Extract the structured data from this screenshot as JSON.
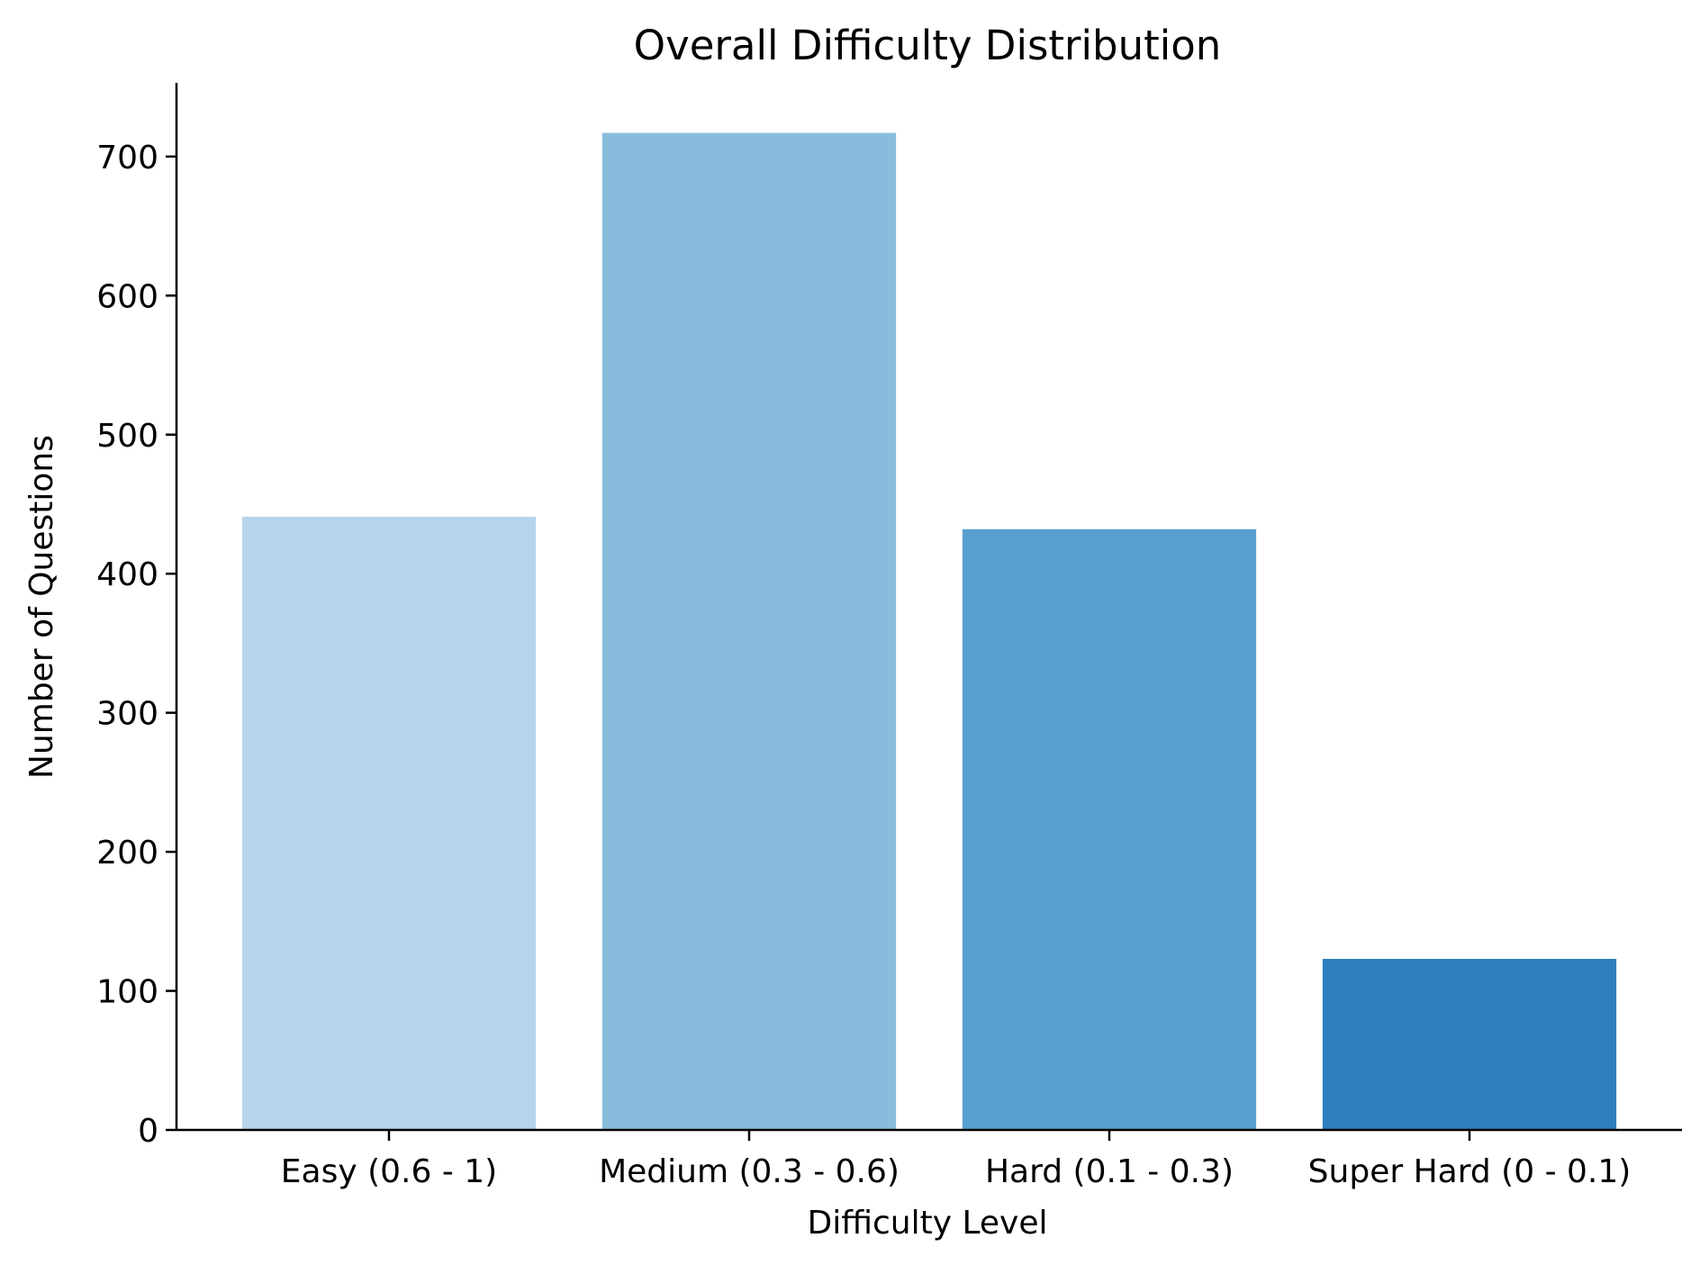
{
  "chart_data": {
    "type": "bar",
    "title": "Overall Difficulty Distribution",
    "xlabel": "Difficulty Level",
    "ylabel": "Number of Questions",
    "categories": [
      "Easy (0.6 - 1)",
      "Medium (0.3 - 0.6)",
      "Hard (0.1 - 0.3)",
      "Super Hard (0 - 0.1)"
    ],
    "values": [
      441,
      717,
      432,
      123
    ],
    "colors": [
      "#b8d4ea",
      "#89bcdc",
      "#579fce",
      "#2e7ebb"
    ],
    "ylim": [
      0,
      753
    ],
    "yticks": [
      0,
      100,
      200,
      300,
      400,
      500,
      600,
      700
    ],
    "grid": false,
    "legend": "none"
  }
}
